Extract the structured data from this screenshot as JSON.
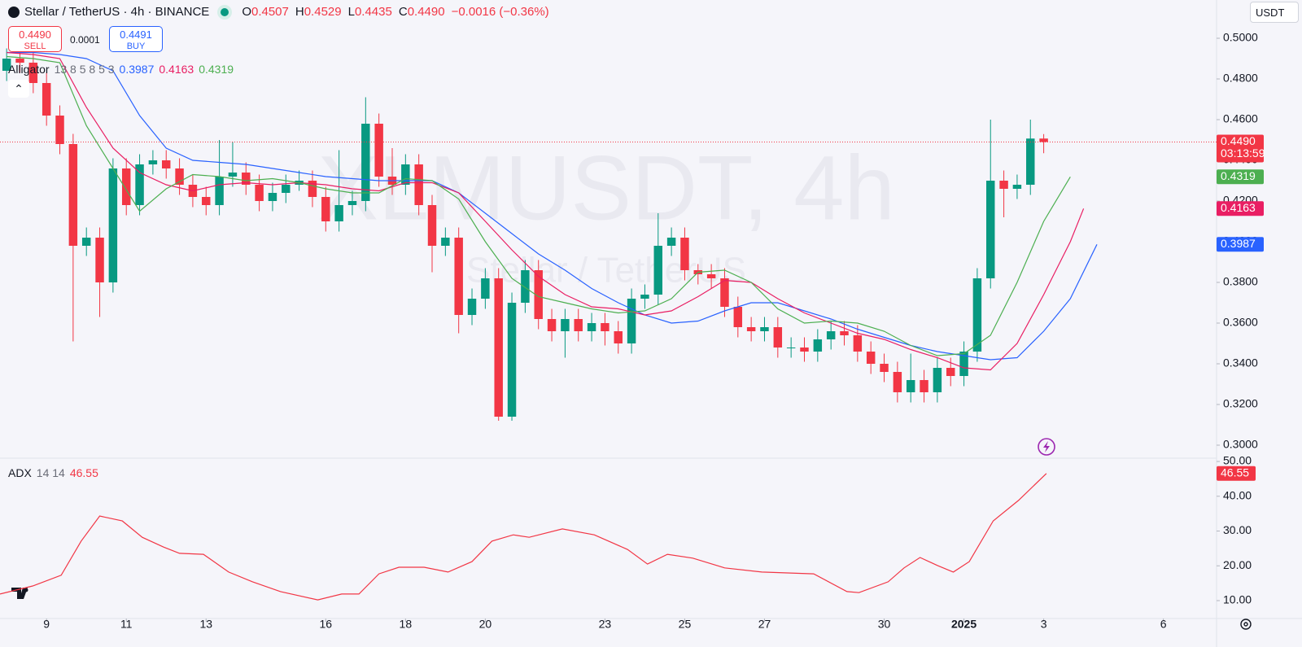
{
  "header": {
    "symbol": "Stellar / TetherUS · 4h · BINANCE",
    "ohlc": [
      {
        "key": "O",
        "value": "0.4507"
      },
      {
        "key": "H",
        "value": "0.4529"
      },
      {
        "key": "L",
        "value": "0.4435"
      },
      {
        "key": "C",
        "value": "0.4490"
      }
    ],
    "change": "−0.0016 (−0.36%)"
  },
  "trade": {
    "sell_price": "0.4490",
    "sell": "SELL",
    "spread": "0.0001",
    "buy_price": "0.4491",
    "buy": "BUY"
  },
  "currency": "USDT",
  "watermark": {
    "main": "XLMUSDT, 4h",
    "sub": "Stellar / TetherUS"
  },
  "chart_data": [
    {
      "type": "candlestick",
      "up_color": "#089981",
      "down_color": "#f23645",
      "open": [
        0.484,
        0.49,
        0.488,
        0.478,
        0.462,
        0.448,
        0.398,
        0.402,
        0.38,
        0.436,
        0.418,
        0.438,
        0.44,
        0.436,
        0.428,
        0.422,
        0.418,
        0.432,
        0.434,
        0.428,
        0.42,
        0.424,
        0.428,
        0.43,
        0.422,
        0.41,
        0.418,
        0.42,
        0.458,
        0.432,
        0.428,
        0.438,
        0.418,
        0.398,
        0.402,
        0.364,
        0.372,
        0.382,
        0.314,
        0.37,
        0.386,
        0.362,
        0.356,
        0.362,
        0.356,
        0.36,
        0.356,
        0.35,
        0.372,
        0.374,
        0.398,
        0.402,
        0.386,
        0.384,
        0.382,
        0.368,
        0.358,
        0.356,
        0.358,
        0.348,
        0.348,
        0.346,
        0.352,
        0.356,
        0.354,
        0.346,
        0.34,
        0.336,
        0.326,
        0.332,
        0.326,
        0.338,
        0.334,
        0.346,
        0.382,
        0.43,
        0.426,
        0.428,
        0.4507
      ],
      "high": [
        0.495,
        0.495,
        0.493,
        0.483,
        0.467,
        0.453,
        0.407,
        0.407,
        0.441,
        0.441,
        0.443,
        0.445,
        0.445,
        0.441,
        0.433,
        0.427,
        0.45,
        0.449,
        0.439,
        0.433,
        0.429,
        0.433,
        0.435,
        0.435,
        0.427,
        0.445,
        0.425,
        0.471,
        0.463,
        0.446,
        0.443,
        0.443,
        0.423,
        0.407,
        0.407,
        0.377,
        0.387,
        0.387,
        0.375,
        0.391,
        0.391,
        0.367,
        0.367,
        0.367,
        0.365,
        0.365,
        0.361,
        0.377,
        0.379,
        0.414,
        0.407,
        0.407,
        0.389,
        0.389,
        0.387,
        0.373,
        0.363,
        0.363,
        0.363,
        0.353,
        0.353,
        0.357,
        0.361,
        0.361,
        0.359,
        0.351,
        0.345,
        0.341,
        0.345,
        0.337,
        0.343,
        0.343,
        0.351,
        0.387,
        0.46,
        0.435,
        0.433,
        0.46,
        0.4529
      ],
      "low": [
        0.479,
        0.483,
        0.473,
        0.457,
        0.443,
        0.351,
        0.393,
        0.363,
        0.375,
        0.413,
        0.413,
        0.433,
        0.431,
        0.423,
        0.417,
        0.413,
        0.413,
        0.427,
        0.423,
        0.415,
        0.415,
        0.419,
        0.425,
        0.417,
        0.405,
        0.405,
        0.413,
        0.415,
        0.427,
        0.423,
        0.423,
        0.413,
        0.385,
        0.393,
        0.355,
        0.359,
        0.367,
        0.312,
        0.312,
        0.365,
        0.357,
        0.351,
        0.343,
        0.351,
        0.351,
        0.349,
        0.345,
        0.345,
        0.367,
        0.369,
        0.393,
        0.381,
        0.379,
        0.377,
        0.363,
        0.353,
        0.351,
        0.351,
        0.343,
        0.343,
        0.341,
        0.341,
        0.347,
        0.349,
        0.341,
        0.335,
        0.331,
        0.321,
        0.321,
        0.321,
        0.321,
        0.329,
        0.329,
        0.341,
        0.377,
        0.412,
        0.421,
        0.423,
        0.4435
      ],
      "close": [
        0.49,
        0.488,
        0.478,
        0.462,
        0.448,
        0.398,
        0.402,
        0.38,
        0.436,
        0.418,
        0.438,
        0.44,
        0.436,
        0.428,
        0.422,
        0.418,
        0.432,
        0.434,
        0.428,
        0.42,
        0.424,
        0.428,
        0.43,
        0.422,
        0.41,
        0.418,
        0.42,
        0.458,
        0.432,
        0.428,
        0.438,
        0.418,
        0.398,
        0.402,
        0.364,
        0.372,
        0.382,
        0.314,
        0.37,
        0.386,
        0.362,
        0.356,
        0.362,
        0.356,
        0.36,
        0.356,
        0.35,
        0.372,
        0.374,
        0.398,
        0.402,
        0.386,
        0.384,
        0.382,
        0.368,
        0.358,
        0.356,
        0.358,
        0.348,
        0.348,
        0.346,
        0.352,
        0.356,
        0.354,
        0.346,
        0.34,
        0.336,
        0.326,
        0.332,
        0.326,
        0.338,
        0.334,
        0.346,
        0.382,
        0.43,
        0.426,
        0.428,
        0.4507,
        0.449
      ],
      "last_price_label": "0.4490",
      "countdown": "03:13:59",
      "indicator": {
        "name": "Alligator",
        "params": "13 8 5 8 5 3"
      },
      "series": [
        {
          "color": "#2962ff",
          "value_label": "0.3987",
          "x": [
            0,
            2,
            4,
            6,
            8,
            10,
            12,
            14,
            16,
            18,
            20,
            22,
            24,
            26,
            28,
            30,
            32,
            34,
            36,
            38,
            40,
            42,
            44,
            46,
            48,
            50,
            52,
            54,
            56,
            58,
            60,
            62,
            64,
            66,
            68,
            70,
            72,
            74,
            76,
            78,
            80,
            82
          ],
          "values": [
            0.493,
            0.493,
            0.492,
            0.49,
            0.484,
            0.462,
            0.446,
            0.44,
            0.439,
            0.438,
            0.436,
            0.434,
            0.432,
            0.431,
            0.43,
            0.43,
            0.43,
            0.424,
            0.414,
            0.404,
            0.394,
            0.386,
            0.377,
            0.37,
            0.364,
            0.36,
            0.361,
            0.366,
            0.37,
            0.37,
            0.366,
            0.362,
            0.357,
            0.353,
            0.349,
            0.346,
            0.344,
            0.342,
            0.343,
            0.356,
            0.372,
            0.3987
          ]
        },
        {
          "color": "#e91e63",
          "value_label": "0.4163",
          "x": [
            0,
            2,
            4,
            6,
            8,
            10,
            12,
            14,
            16,
            18,
            20,
            22,
            24,
            26,
            28,
            30,
            32,
            34,
            36,
            38,
            40,
            42,
            44,
            46,
            48,
            50,
            52,
            54,
            56,
            58,
            60,
            62,
            64,
            66,
            68,
            70,
            72,
            74,
            76,
            78,
            80,
            81
          ],
          "values": [
            0.493,
            0.492,
            0.49,
            0.466,
            0.446,
            0.434,
            0.428,
            0.425,
            0.428,
            0.429,
            0.428,
            0.429,
            0.428,
            0.426,
            0.425,
            0.429,
            0.429,
            0.424,
            0.41,
            0.396,
            0.383,
            0.374,
            0.368,
            0.367,
            0.364,
            0.366,
            0.373,
            0.381,
            0.38,
            0.372,
            0.365,
            0.36,
            0.355,
            0.352,
            0.347,
            0.343,
            0.338,
            0.337,
            0.35,
            0.374,
            0.4,
            0.4163
          ]
        },
        {
          "color": "#4caf50",
          "value_label": "0.4319",
          "x": [
            0,
            2,
            4,
            6,
            8,
            10,
            12,
            14,
            16,
            18,
            20,
            22,
            24,
            26,
            28,
            30,
            32,
            34,
            36,
            38,
            40,
            42,
            44,
            46,
            48,
            50,
            52,
            54,
            56,
            58,
            60,
            62,
            64,
            66,
            68,
            70,
            72,
            74,
            76,
            78,
            80
          ],
          "values": [
            0.491,
            0.49,
            0.488,
            0.457,
            0.436,
            0.415,
            0.426,
            0.433,
            0.432,
            0.43,
            0.431,
            0.429,
            0.426,
            0.424,
            0.424,
            0.431,
            0.43,
            0.421,
            0.4,
            0.382,
            0.373,
            0.37,
            0.367,
            0.365,
            0.366,
            0.372,
            0.385,
            0.386,
            0.38,
            0.367,
            0.36,
            0.361,
            0.36,
            0.356,
            0.349,
            0.344,
            0.345,
            0.354,
            0.38,
            0.41,
            0.4319
          ]
        }
      ],
      "xlim": [
        -0.5,
        91
      ],
      "xticks": [
        {
          "value": 3,
          "label": "9"
        },
        {
          "value": 9,
          "label": "11"
        },
        {
          "value": 15,
          "label": "13"
        },
        {
          "value": 24,
          "label": "16"
        },
        {
          "value": 30,
          "label": "18"
        },
        {
          "value": 36,
          "label": "20"
        },
        {
          "value": 45,
          "label": "23"
        },
        {
          "value": 51,
          "label": "25"
        },
        {
          "value": 57,
          "label": "27"
        },
        {
          "value": 66,
          "label": "30"
        },
        {
          "value": 72,
          "label": "2025"
        },
        {
          "value": 78,
          "label": "3"
        },
        {
          "value": 87,
          "label": "6"
        }
      ],
      "ylim": [
        0.294,
        0.5188
      ],
      "yticks": [
        {
          "value": 0.3,
          "label": "0.3000"
        },
        {
          "value": 0.32,
          "label": "0.3200"
        },
        {
          "value": 0.34,
          "label": "0.3400"
        },
        {
          "value": 0.36,
          "label": "0.3600"
        },
        {
          "value": 0.38,
          "label": "0.3800"
        },
        {
          "value": 0.4,
          "label": "0.4000"
        },
        {
          "value": 0.42,
          "label": "0.4200"
        },
        {
          "value": 0.44,
          "label": "0.4400"
        },
        {
          "value": 0.46,
          "label": "0.4600"
        },
        {
          "value": 0.48,
          "label": "0.4800"
        },
        {
          "value": 0.5,
          "label": "0.5000"
        }
      ]
    },
    {
      "type": "line",
      "title": "ADX",
      "params": "14 14",
      "series": [
        {
          "color": "#f23645",
          "value_label": "46.55",
          "x": [
            -0.5,
            1.96,
            4.1,
            5.6,
            7.0,
            8.7,
            10.2,
            11.8,
            13.0,
            14.8,
            16.7,
            18.5,
            20.6,
            23.4,
            25.2,
            26.5,
            28.0,
            29.5,
            31.4,
            33.2,
            35.0,
            36.5,
            38.1,
            39.3,
            41.8,
            44.2,
            46.7,
            48.2,
            49.7,
            51.6,
            54.0,
            56.8,
            60.7,
            63.2,
            64.1,
            66.3,
            67.5,
            68.7,
            70.0,
            71.2,
            72.4,
            74.2,
            76.1,
            78.2
          ],
          "values": [
            11.9,
            14.2,
            17.3,
            27.1,
            34.3,
            32.9,
            28.2,
            25.4,
            23.6,
            23.3,
            18.2,
            15.4,
            12.6,
            10.2,
            11.9,
            11.9,
            17.7,
            19.6,
            19.6,
            18.2,
            21.2,
            27.1,
            28.9,
            28.2,
            30.6,
            28.9,
            24.7,
            20.5,
            23.3,
            22.2,
            19.4,
            18.2,
            17.7,
            12.6,
            12.3,
            15.4,
            19.4,
            22.4,
            20.1,
            18.2,
            21.2,
            32.9,
            38.8,
            46.55
          ]
        }
      ],
      "xlim": [
        -0.5,
        91
      ],
      "ylim": [
        4.85,
        50.94
      ],
      "yticks": [
        {
          "value": 10,
          "label": "10.00"
        },
        {
          "value": 20,
          "label": "20.00"
        },
        {
          "value": 30,
          "label": "30.00"
        },
        {
          "value": 40,
          "label": "40.00"
        },
        {
          "value": 50,
          "label": "50.00"
        }
      ]
    }
  ]
}
